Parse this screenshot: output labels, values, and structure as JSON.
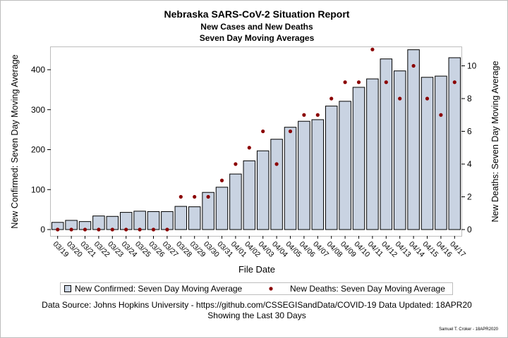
{
  "chart_data": {
    "type": "bar",
    "title": "Nebraska SARS-CoV-2 Situation Report",
    "subtitle": "New Cases and New Deaths",
    "subtitle2": "Seven Day Moving Averages",
    "xlabel": "File Date",
    "ylabel_left": "New Confirmed: Seven Day Moving Average",
    "ylabel_right": "New Deaths: Seven Day Moving Average",
    "ylim_left": [
      0,
      460
    ],
    "yticks_left": [
      0,
      100,
      200,
      300,
      400
    ],
    "ylim_right": [
      0,
      11.5
    ],
    "yticks_right": [
      0,
      2,
      4,
      6,
      8,
      10
    ],
    "categories": [
      "03/19",
      "03/20",
      "03/21",
      "03/22",
      "03/23",
      "03/24",
      "03/25",
      "03/26",
      "03/27",
      "03/28",
      "03/29",
      "03/30",
      "03/31",
      "04/01",
      "04/02",
      "04/03",
      "04/04",
      "04/05",
      "04/06",
      "04/07",
      "04/08",
      "04/09",
      "04/10",
      "04/11",
      "04/12",
      "04/13",
      "04/14",
      "04/15",
      "04/16",
      "04/17"
    ],
    "series": [
      {
        "name": "New Confirmed: Seven Day Moving Average",
        "kind": "bar",
        "axis": "left",
        "values": [
          18,
          23,
          20,
          34,
          33,
          43,
          46,
          45,
          45,
          58,
          57,
          93,
          106,
          139,
          172,
          197,
          226,
          256,
          271,
          275,
          309,
          321,
          356,
          377,
          427,
          397,
          450,
          381,
          384,
          430
        ]
      },
      {
        "name": "New Deaths: Seven Day Moving Average",
        "kind": "scatter",
        "axis": "right",
        "values": [
          0,
          0,
          0,
          0,
          0,
          0,
          0,
          0,
          0,
          2,
          2,
          2,
          3,
          4,
          5,
          6,
          4,
          6,
          7,
          7,
          8,
          9,
          9,
          11,
          9,
          8,
          10,
          8,
          7,
          9
        ]
      }
    ],
    "legend_position": "bottom",
    "grid": false,
    "colors": {
      "bar_fill": "#c9d3e2",
      "bar_stroke": "#000000",
      "marker": "#8b0000",
      "frame": "#bdbdbd"
    },
    "footnote1": "Data Source: Johns Hopkins University - https://github.com/CSSEGISandData/COVID-19 Data Updated: 18APR20",
    "footnote2": "Showing the Last 30 Days",
    "credit": "Samuel T. Croker - 18APR2020"
  }
}
